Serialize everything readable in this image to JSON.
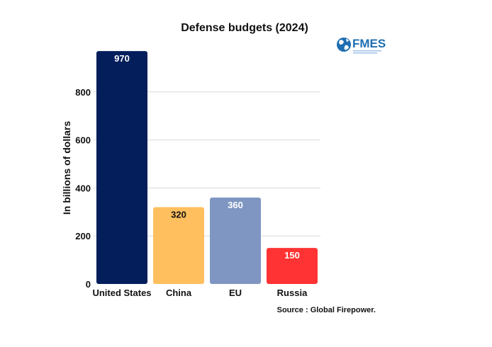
{
  "chart_data": {
    "type": "bar",
    "title": "Defense budgets (2024)",
    "xlabel": "",
    "ylabel": "In billions of dollars",
    "categories": [
      "United States",
      "China",
      "EU",
      "Russia"
    ],
    "values": [
      970,
      320,
      360,
      150
    ],
    "data_labels": [
      "970",
      "320",
      "360",
      "150"
    ],
    "colors": [
      "#041e5c",
      "#ffbf5e",
      "#7f96c2",
      "#ff3333"
    ],
    "label_colors": [
      "#ffffff",
      "#111111",
      "#ffffff",
      "#ffffff"
    ],
    "ylim": [
      0,
      1000
    ],
    "yticks": [
      0,
      200,
      400,
      600,
      800
    ],
    "ytick_labels": [
      "0",
      "200",
      "400",
      "600",
      "800"
    ],
    "grid": true,
    "source": "Source : Global Firepower."
  },
  "logo": {
    "text": "FMES",
    "icon": "globe-icon"
  }
}
